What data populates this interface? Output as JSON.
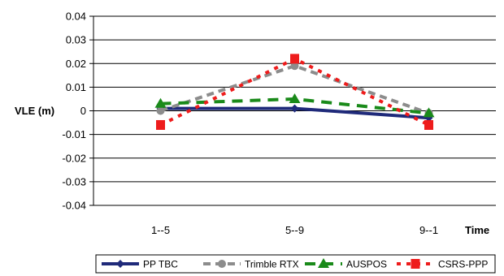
{
  "chart_data": {
    "type": "line",
    "title": "",
    "ylabel": "VLE (m)",
    "xlabel": "Time",
    "categories": [
      "1--5",
      "5--9",
      "9--1"
    ],
    "ylim": [
      -0.04,
      0.04
    ],
    "yticks": [
      0.04,
      0.03,
      0.02,
      0.01,
      0,
      -0.01,
      -0.02,
      -0.03,
      -0.04
    ],
    "ytick_labels": [
      "0.04",
      "0.03",
      "0.02",
      "0.01",
      "0",
      "-0.01",
      "-0.02",
      "-0.03",
      "-0.04"
    ],
    "grid": true,
    "legend_position": "bottom",
    "series": [
      {
        "name": "PP TBC",
        "values": [
          0.001,
          0.001,
          -0.003
        ],
        "color": "#1f2a7a",
        "dash": "solid",
        "marker": "diamond"
      },
      {
        "name": "Trimble RTX",
        "values": [
          0.0,
          0.019,
          -0.001
        ],
        "color": "#8c8c8c",
        "dash": "dash",
        "marker": "circle"
      },
      {
        "name": "AUSPOS",
        "values": [
          0.003,
          0.005,
          -0.001
        ],
        "color": "#1a8a1a",
        "dash": "longdash",
        "marker": "triangle"
      },
      {
        "name": "CSRS-PPP",
        "values": [
          -0.006,
          0.022,
          -0.006
        ],
        "color": "#ee1c1c",
        "dash": "dot",
        "marker": "square"
      }
    ]
  }
}
